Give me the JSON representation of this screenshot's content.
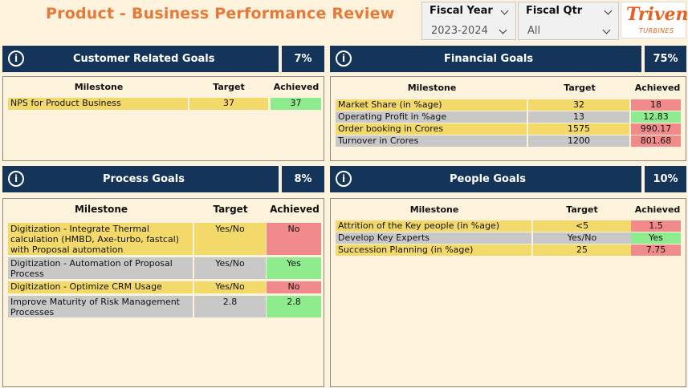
{
  "page_title": "Product - Business Performance Review",
  "fiscal_year": {
    "label": "Fiscal Year",
    "value": "2023-2024"
  },
  "fiscal_qtr": {
    "label": "Fiscal Qtr",
    "value": "All"
  },
  "logo": {
    "name": "Triveni",
    "sub": "TURBINES"
  },
  "colors": {
    "header": "#14345a",
    "title": "#e8783a",
    "yellow": "#f2d96a",
    "grey": "#c8c8c8",
    "green": "#8eec8e",
    "red": "#f18a8a"
  },
  "columns": {
    "milestone": "Milestone",
    "target": "Target",
    "achieved": "Achieved"
  },
  "customer": {
    "title": "Customer Related Goals",
    "pct": "7%",
    "rows": [
      {
        "milestone": "NPS for Product Business",
        "target": "37",
        "achieved": "37"
      }
    ]
  },
  "financial": {
    "title": "Financial Goals",
    "pct": "75%",
    "rows": [
      {
        "milestone": "Market Share (in %age)",
        "target": "32",
        "achieved": "18"
      },
      {
        "milestone": "Operating Profit in %age",
        "target": "13",
        "achieved": "12.83"
      },
      {
        "milestone": "Order booking in Crores",
        "target": "1575",
        "achieved": "990.17"
      },
      {
        "milestone": "Turnover in Crores",
        "target": "1200",
        "achieved": "801.68"
      }
    ]
  },
  "process": {
    "title": "Process Goals",
    "pct": "8%",
    "rows": [
      {
        "milestone": "Digitization - Integrate Thermal calculation (HMBD, Axe-turbo, fastcal) with Proposal automation",
        "target": "Yes/No",
        "achieved": "No"
      },
      {
        "milestone": "Digitization - Automation of Proposal Process",
        "target": "Yes/No",
        "achieved": "Yes"
      },
      {
        "milestone": "Digitization - Optimize CRM Usage",
        "target": "Yes/No",
        "achieved": "No"
      },
      {
        "milestone": "Improve Maturity of Risk Management Processes",
        "target": "2.8",
        "achieved": "2.8"
      }
    ]
  },
  "people": {
    "title": "People Goals",
    "pct": "10%",
    "rows": [
      {
        "milestone": "Attrition of the Key people (in %age)",
        "target": "<5",
        "achieved": "1.5"
      },
      {
        "milestone": "Develop Key Experts",
        "target": "Yes/No",
        "achieved": "Yes"
      },
      {
        "milestone": "Succession Planning (in %age)",
        "target": "25",
        "achieved": "7.75"
      }
    ]
  }
}
